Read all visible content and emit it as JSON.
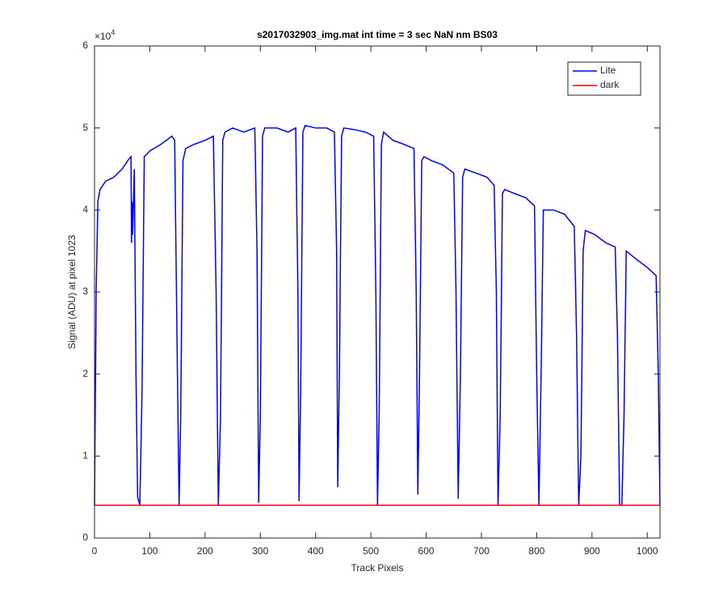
{
  "chart_data": {
    "type": "line",
    "title": "s2017032903_img.mat int time = 3 sec  NaN nm BS03",
    "x_label": "Track Pixels",
    "y_label": "Signal (ADU) at pixel 1023",
    "y_multiplier_base": "×10",
    "y_multiplier_exponent": "4",
    "xlim": [
      0,
      1023
    ],
    "ylim": [
      0,
      6
    ],
    "xticks": [
      0,
      100,
      200,
      300,
      400,
      500,
      600,
      700,
      800,
      900,
      1000
    ],
    "yticks": [
      0,
      1,
      2,
      3,
      4,
      5,
      6
    ],
    "grid": false,
    "legend": "upper right",
    "series": [
      {
        "name": "Lite",
        "color": "#0000ff",
        "x": [
          0,
          3,
          6,
          10,
          20,
          35,
          50,
          62,
          66,
          67,
          68,
          69,
          72,
          75,
          78,
          82,
          86,
          90,
          100,
          120,
          140,
          145,
          150,
          153,
          156,
          160,
          165,
          180,
          200,
          215,
          220,
          224,
          228,
          232,
          236,
          250,
          270,
          290,
          294,
          297,
          300,
          304,
          308,
          330,
          350,
          364,
          368,
          370,
          373,
          377,
          381,
          400,
          420,
          434,
          438,
          440,
          443,
          447,
          451,
          470,
          490,
          505,
          509,
          512,
          515,
          519,
          523,
          540,
          560,
          578,
          582,
          585,
          588,
          592,
          596,
          610,
          630,
          650,
          654,
          658,
          662,
          666,
          670,
          690,
          710,
          723,
          727,
          730,
          734,
          738,
          742,
          760,
          780,
          796,
          800,
          804,
          808,
          812,
          830,
          850,
          868,
          872,
          876,
          880,
          884,
          888,
          905,
          925,
          942,
          946,
          950,
          954,
          958,
          962,
          980,
          1000,
          1016,
          1020,
          1023
        ],
        "values": [
          0.4,
          3.0,
          4.1,
          4.25,
          4.35,
          4.4,
          4.5,
          4.62,
          4.65,
          3.6,
          4.1,
          3.7,
          4.5,
          2.0,
          0.5,
          0.4,
          1.8,
          4.65,
          4.72,
          4.8,
          4.9,
          4.85,
          2.0,
          0.4,
          1.5,
          4.6,
          4.75,
          4.8,
          4.85,
          4.9,
          3.0,
          0.4,
          1.5,
          4.85,
          4.95,
          5.0,
          4.95,
          5.0,
          3.5,
          0.43,
          1.5,
          4.9,
          5.0,
          5.0,
          4.95,
          5.0,
          3.0,
          0.45,
          1.8,
          4.95,
          5.03,
          5.0,
          5.0,
          4.95,
          3.5,
          0.62,
          2.0,
          4.9,
          5.0,
          4.98,
          4.95,
          4.9,
          3.0,
          0.4,
          1.5,
          4.8,
          4.95,
          4.85,
          4.8,
          4.75,
          3.0,
          0.53,
          2.0,
          4.6,
          4.65,
          4.6,
          4.55,
          4.45,
          3.0,
          0.48,
          2.0,
          4.4,
          4.5,
          4.45,
          4.4,
          4.3,
          3.0,
          0.4,
          1.5,
          4.2,
          4.25,
          4.2,
          4.15,
          4.05,
          2.0,
          0.4,
          2.0,
          4.0,
          4.0,
          3.95,
          3.8,
          2.5,
          0.4,
          1.0,
          3.5,
          3.75,
          3.7,
          3.6,
          3.55,
          2.5,
          0.4,
          0.4,
          1.5,
          3.5,
          3.4,
          3.3,
          3.2,
          2.0,
          0.4
        ]
      },
      {
        "name": "dark",
        "color": "#ff0000",
        "x": [
          0,
          1023
        ],
        "values": [
          0.4,
          0.4
        ]
      }
    ]
  }
}
